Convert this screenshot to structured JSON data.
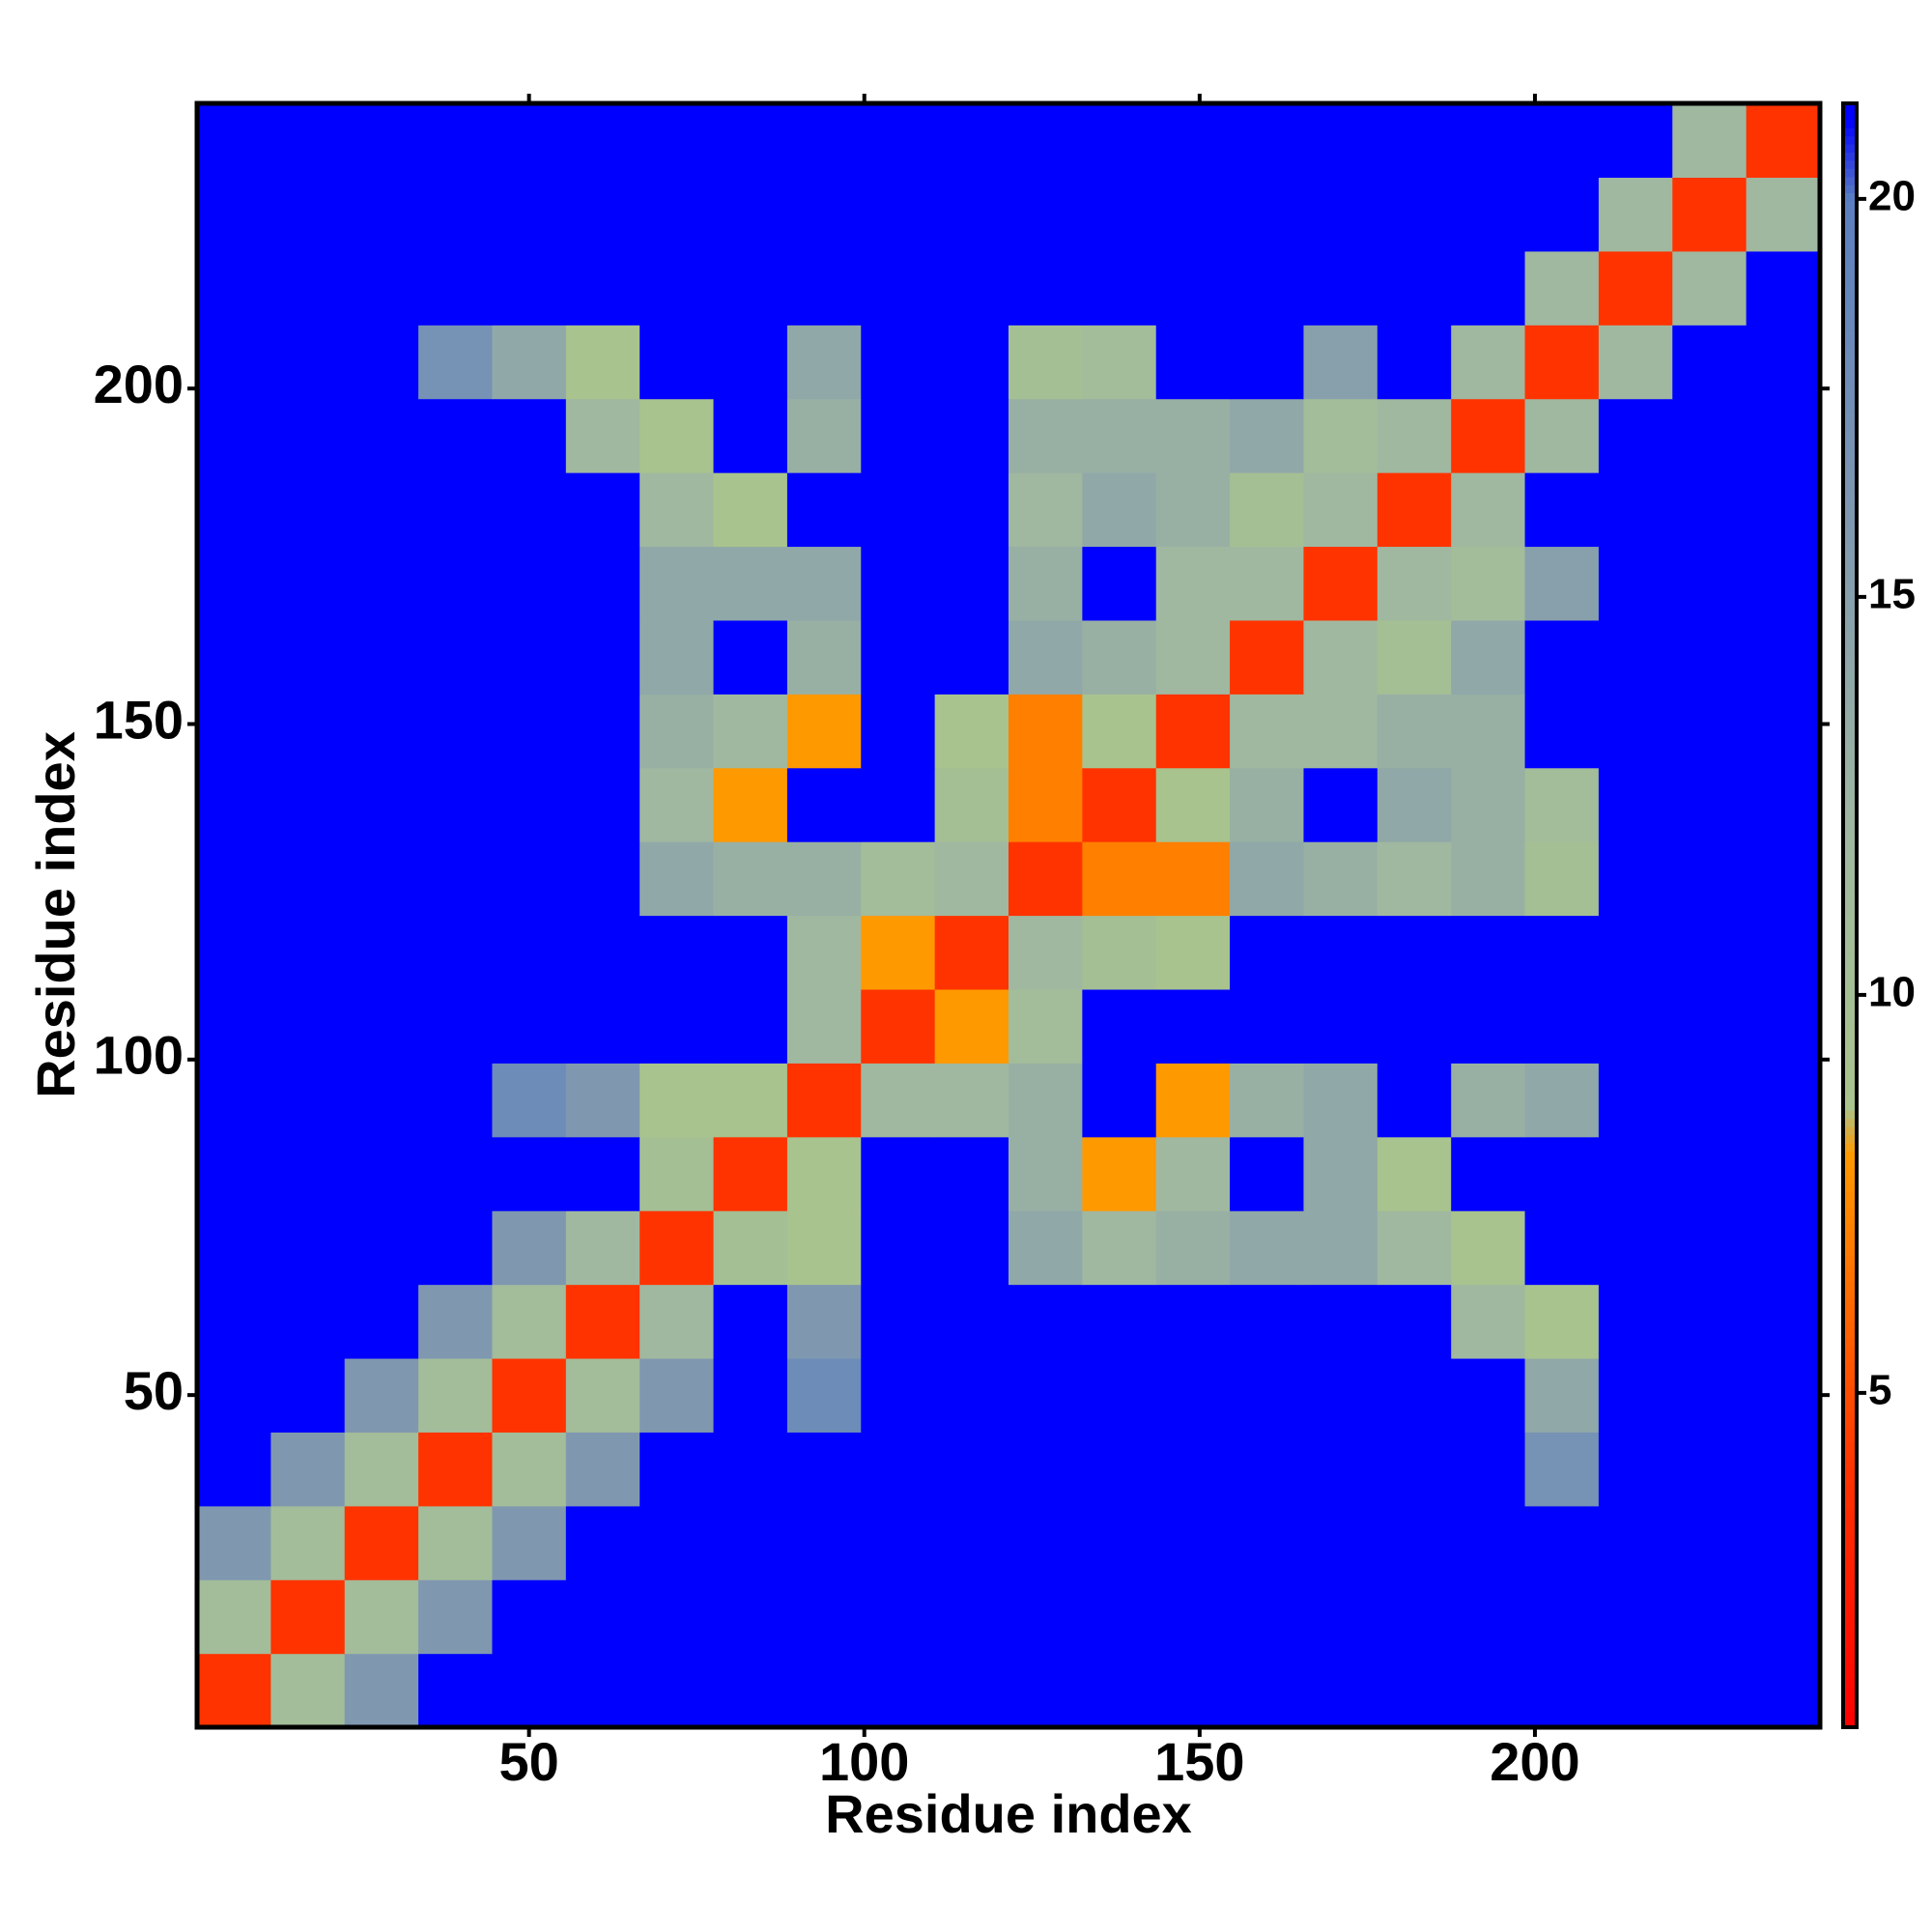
{
  "chart_data": {
    "type": "heatmap",
    "x_label": "Residue index",
    "y_label": "Residue index",
    "bins": [
      0.5,
      11.5,
      22.5,
      33.5,
      44.5,
      55.5,
      66.5,
      77.5,
      88.5,
      99.5,
      110.5,
      121.5,
      132.5,
      143.5,
      154.5,
      165.5,
      176.5,
      187.5,
      198.5,
      209.5,
      220.5,
      231.5,
      242.5
    ],
    "xlim": [
      0.5,
      242.5
    ],
    "ylim": [
      0.5,
      242.5
    ],
    "xticks": [
      50,
      100,
      150,
      200
    ],
    "yticks": [
      50,
      100,
      150,
      200
    ],
    "clim": [
      0.8,
      21.2
    ],
    "cticks": [
      5,
      10,
      15,
      20
    ],
    "colorscale": [
      [
        0.8,
        "#ff0000"
      ],
      [
        4,
        "#ff3300"
      ],
      [
        8,
        "#ff9900"
      ],
      [
        8.6,
        "#a9c48c"
      ],
      [
        12,
        "#a0b8a0"
      ],
      [
        16,
        "#7f98b0"
      ],
      [
        20,
        "#5a7fc0"
      ],
      [
        21,
        "#0000ff"
      ]
    ],
    "values": [
      [
        4,
        11,
        16,
        21,
        21,
        21,
        21,
        21,
        21,
        21,
        21,
        21,
        21,
        21,
        21,
        21,
        21,
        21,
        21,
        21,
        21,
        21
      ],
      [
        11,
        4,
        11,
        16,
        21,
        21,
        21,
        21,
        21,
        21,
        21,
        21,
        21,
        21,
        21,
        21,
        21,
        21,
        21,
        21,
        21,
        21
      ],
      [
        16,
        11,
        4,
        11,
        16,
        21,
        21,
        21,
        21,
        21,
        21,
        21,
        21,
        21,
        21,
        21,
        21,
        21,
        21,
        21,
        21,
        21
      ],
      [
        21,
        16,
        11,
        4,
        11,
        16,
        21,
        21,
        21,
        21,
        21,
        21,
        21,
        21,
        21,
        21,
        21,
        21,
        17,
        21,
        21,
        21
      ],
      [
        21,
        21,
        16,
        11,
        4,
        11,
        16,
        21,
        18,
        21,
        21,
        21,
        21,
        21,
        21,
        21,
        21,
        21,
        14,
        21,
        21,
        21
      ],
      [
        21,
        21,
        21,
        16,
        11,
        4,
        12,
        21,
        16,
        21,
        21,
        21,
        21,
        21,
        21,
        21,
        21,
        12,
        9,
        21,
        21,
        21
      ],
      [
        21,
        21,
        21,
        21,
        16,
        12,
        4,
        10,
        9,
        21,
        21,
        14,
        12,
        13,
        14,
        14,
        12,
        9,
        21,
        21,
        21,
        21
      ],
      [
        21,
        21,
        21,
        21,
        21,
        21,
        10,
        4,
        9,
        21,
        21,
        13,
        8,
        12,
        21,
        14,
        9,
        21,
        21,
        21,
        21,
        21
      ],
      [
        21,
        21,
        21,
        21,
        18,
        16,
        9,
        9,
        4,
        12,
        12,
        13,
        21,
        8,
        13,
        14,
        21,
        13,
        14,
        21,
        21,
        21
      ],
      [
        21,
        21,
        21,
        21,
        21,
        21,
        21,
        21,
        12,
        4,
        8,
        11,
        21,
        21,
        21,
        21,
        21,
        21,
        21,
        21,
        21,
        21
      ],
      [
        21,
        21,
        21,
        21,
        21,
        21,
        21,
        21,
        12,
        8,
        4,
        12,
        10,
        9,
        21,
        21,
        21,
        21,
        21,
        21,
        21,
        21
      ],
      [
        21,
        21,
        21,
        21,
        21,
        21,
        14,
        13,
        13,
        11,
        12,
        4,
        7,
        7,
        14,
        13,
        12,
        13,
        10,
        21,
        21,
        21
      ],
      [
        21,
        21,
        21,
        21,
        21,
        21,
        12,
        8,
        21,
        21,
        10,
        7,
        4,
        9,
        13,
        21,
        14,
        13,
        11,
        21,
        21,
        21
      ],
      [
        21,
        21,
        21,
        21,
        21,
        21,
        13,
        12,
        8,
        21,
        9,
        7,
        9,
        4,
        12,
        12,
        13,
        13,
        21,
        21,
        21,
        21
      ],
      [
        21,
        21,
        21,
        21,
        21,
        21,
        14,
        21,
        13,
        21,
        21,
        14,
        13,
        12,
        4,
        12,
        10,
        14,
        21,
        21,
        21,
        21
      ],
      [
        21,
        21,
        21,
        21,
        21,
        21,
        14,
        14,
        14,
        21,
        21,
        13,
        21,
        12,
        12,
        4,
        12,
        11,
        15,
        21,
        21,
        21
      ],
      [
        21,
        21,
        21,
        21,
        21,
        21,
        12,
        9,
        21,
        21,
        21,
        12,
        14,
        13,
        10,
        12,
        4,
        12,
        21,
        21,
        21,
        21
      ],
      [
        21,
        21,
        21,
        21,
        21,
        12,
        9,
        21,
        13,
        21,
        21,
        13,
        13,
        13,
        14,
        11,
        12,
        4,
        12,
        21,
        21,
        21
      ],
      [
        21,
        21,
        21,
        17,
        14,
        9,
        21,
        21,
        14,
        21,
        21,
        10,
        11,
        21,
        21,
        15,
        21,
        12,
        4,
        12,
        21,
        21
      ],
      [
        21,
        21,
        21,
        21,
        21,
        21,
        21,
        21,
        21,
        21,
        21,
        21,
        21,
        21,
        21,
        21,
        21,
        21,
        12,
        4,
        12,
        21
      ],
      [
        21,
        21,
        21,
        21,
        21,
        21,
        21,
        21,
        21,
        21,
        21,
        21,
        21,
        21,
        21,
        21,
        21,
        21,
        21,
        12,
        4,
        12
      ],
      [
        21,
        21,
        21,
        21,
        21,
        21,
        21,
        21,
        21,
        21,
        21,
        21,
        21,
        21,
        21,
        21,
        21,
        21,
        21,
        21,
        12,
        4
      ]
    ]
  }
}
